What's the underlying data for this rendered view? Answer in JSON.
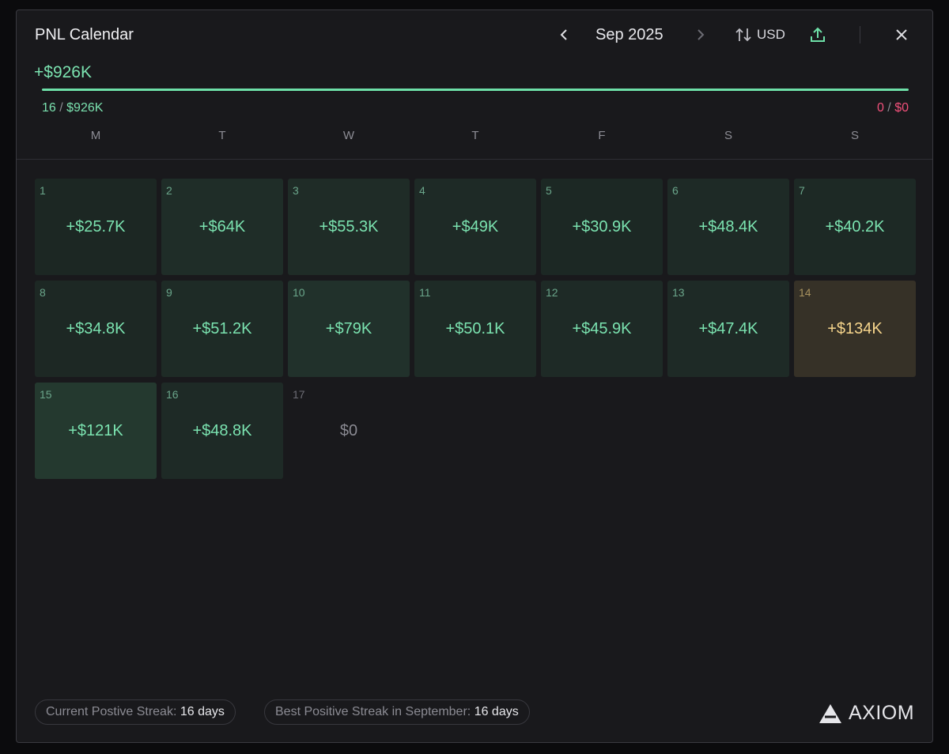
{
  "header": {
    "title": "PNL Calendar",
    "month": "Sep 2025",
    "currency": "USD"
  },
  "summary": {
    "total": "+$926K",
    "positive_days": "16",
    "positive_total": "$926K",
    "separator": "/",
    "negative_days": "0",
    "negative_total": "$0"
  },
  "weekdays": [
    "M",
    "T",
    "W",
    "T",
    "F",
    "S",
    "S"
  ],
  "days": [
    {
      "day": "1",
      "pnl": "+$25.7K",
      "color": "#7be3b0",
      "background": "#1c2723"
    },
    {
      "day": "2",
      "pnl": "+$64K",
      "color": "#7be3b0",
      "background": "#1f2d28"
    },
    {
      "day": "3",
      "pnl": "+$55.3K",
      "color": "#7be3b0",
      "background": "#1f2c27"
    },
    {
      "day": "4",
      "pnl": "+$49K",
      "color": "#7be3b0",
      "background": "#1e2a26"
    },
    {
      "day": "5",
      "pnl": "+$30.9K",
      "color": "#7be3b0",
      "background": "#1c2824"
    },
    {
      "day": "6",
      "pnl": "+$48.4K",
      "color": "#7be3b0",
      "background": "#1e2a26"
    },
    {
      "day": "7",
      "pnl": "+$40.2K",
      "color": "#7be3b0",
      "background": "#1d2925"
    },
    {
      "day": "8",
      "pnl": "+$34.8K",
      "color": "#7be3b0",
      "background": "#1d2824"
    },
    {
      "day": "9",
      "pnl": "+$51.2K",
      "color": "#7be3b0",
      "background": "#1e2b26"
    },
    {
      "day": "10",
      "pnl": "+$79K",
      "color": "#7be3b0",
      "background": "#21312b"
    },
    {
      "day": "11",
      "pnl": "+$50.1K",
      "color": "#7be3b0",
      "background": "#1e2b26"
    },
    {
      "day": "12",
      "pnl": "+$45.9K",
      "color": "#7be3b0",
      "background": "#1e2a26"
    },
    {
      "day": "13",
      "pnl": "+$47.4K",
      "color": "#7be3b0",
      "background": "#1e2a26"
    },
    {
      "day": "14",
      "pnl": "+$134K",
      "color": "#f6d58c",
      "background": "#363127"
    },
    {
      "day": "15",
      "pnl": "+$121K",
      "color": "#7be3b0",
      "background": "#24392f"
    },
    {
      "day": "16",
      "pnl": "+$48.8K",
      "color": "#7be3b0",
      "background": "#1e2a26"
    },
    {
      "day": "17",
      "pnl": "$0",
      "color": "#8a8a92",
      "background": "transparent"
    }
  ],
  "streaks": [
    {
      "label": "Current Postive Streak:",
      "value": "16 days"
    },
    {
      "label": "Best Positive Streak in September:",
      "value": "16 days"
    }
  ],
  "brand": "AXIOM"
}
